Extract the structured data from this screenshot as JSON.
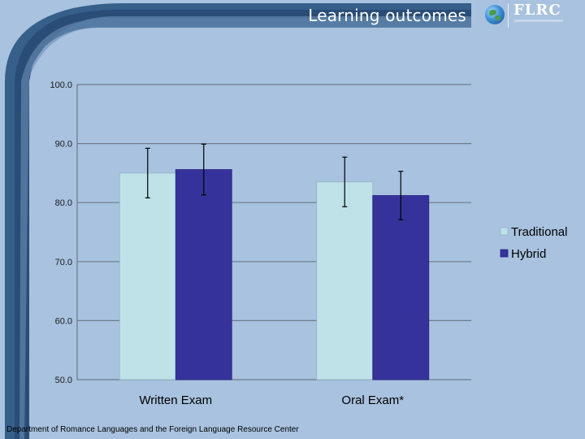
{
  "slide": {
    "title": "Learning outcomes",
    "logo_text": "FLRC",
    "footer": "Department of Romance Languages and the Foreign Language Resource Center"
  },
  "icons": {
    "logo": "globe-icon"
  },
  "colors": {
    "background": "#a8c2df",
    "frame": "#365f8a",
    "traditional": "#bfe1e8",
    "hybrid": "#35339b",
    "grid": "#6e7a8a"
  },
  "chart_data": {
    "type": "bar",
    "categories": [
      "Written Exam",
      "Oral Exam*"
    ],
    "series": [
      {
        "name": "Traditional",
        "values": [
          85.0,
          83.5
        ],
        "error": [
          4.2,
          4.2
        ]
      },
      {
        "name": "Hybrid",
        "values": [
          85.6,
          81.2
        ],
        "error": [
          4.3,
          4.1
        ]
      }
    ],
    "ylim": [
      50,
      100
    ],
    "yticks": [
      50,
      60,
      70,
      80,
      90,
      100
    ],
    "ytick_labels": [
      "50.0",
      "60.0",
      "70.0",
      "80.0",
      "90.0",
      "100.0"
    ],
    "grid": true,
    "legend": "right",
    "error_bars": true
  }
}
